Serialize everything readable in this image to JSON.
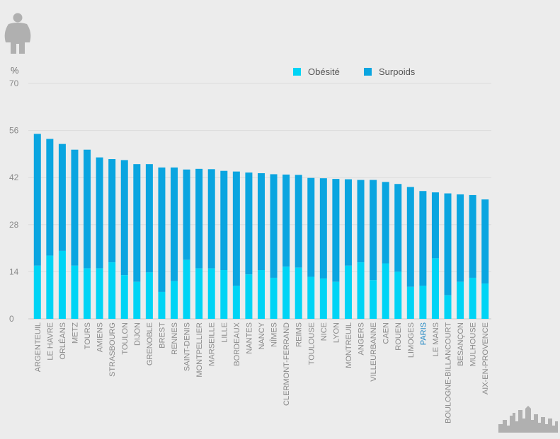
{
  "colors": {
    "obesity": "#00d4f5",
    "overweight": "#0aa5e0",
    "highlight_label": "#1a84c2",
    "label": "#8a8a8a",
    "grid": "#dcdcdc",
    "icon": "#b0b0b0"
  },
  "icons": {
    "person": "overweight-person-icon",
    "skyline": "city-skyline-icon"
  },
  "chart_data": {
    "type": "bar",
    "stacked": true,
    "y_unit_label": "%",
    "ylim": [
      0,
      70
    ],
    "yticks": [
      0,
      14,
      28,
      42,
      56,
      70
    ],
    "grid": true,
    "legend_position": "top-right",
    "highlight_category": "PARIS",
    "categories": [
      "ARGENTEUIL",
      "LE HAVRE",
      "ORLÉANS",
      "METZ",
      "TOURS",
      "AMIENS",
      "STRASBOURG",
      "TOULON",
      "DIJON",
      "GRENOBLE",
      "BREST",
      "RENNES",
      "SAINT-DENIS",
      "MONTPELLIER",
      "MARSEILLE",
      "LILLE",
      "BORDEAUX",
      "NANTES",
      "NANCY",
      "NÎMES",
      "CLERMONT-FERRAND",
      "REIMS",
      "TOULOUSE",
      "NICE",
      "LYON",
      "MONTREUIL",
      "ANGERS",
      "VILLEURBANNE",
      "CAEN",
      "ROUEN",
      "LIMOGES",
      "PARIS",
      "LE MANS",
      "BOULOGNE-BILLANCOURT",
      "BESANÇON",
      "MULHOUSE",
      "AIX-EN-PROVENCE"
    ],
    "series": [
      {
        "name": "Obésité",
        "values": [
          15.8,
          18.8,
          20.2,
          15.8,
          15.0,
          15.0,
          16.8,
          13.0,
          11.0,
          13.8,
          8.0,
          11.2,
          17.5,
          15.0,
          15.0,
          14.5,
          9.8,
          13.2,
          14.5,
          12.2,
          15.5,
          15.2,
          12.5,
          12.0,
          11.0,
          15.8,
          16.8,
          11.5,
          16.5,
          14.0,
          9.5,
          9.8,
          18.0,
          7.0,
          11.0,
          12.2,
          10.5
        ]
      },
      {
        "name": "Surpoids",
        "values": [
          39.2,
          34.7,
          31.8,
          34.5,
          35.3,
          33.0,
          30.7,
          34.2,
          35.0,
          32.2,
          37.0,
          33.8,
          26.9,
          29.6,
          29.5,
          29.5,
          34.0,
          30.3,
          28.8,
          30.8,
          27.4,
          27.6,
          29.4,
          29.8,
          30.6,
          25.7,
          24.5,
          29.8,
          24.2,
          26.1,
          29.7,
          28.2,
          19.6,
          30.3,
          26.0,
          24.6,
          25.0
        ]
      }
    ]
  }
}
